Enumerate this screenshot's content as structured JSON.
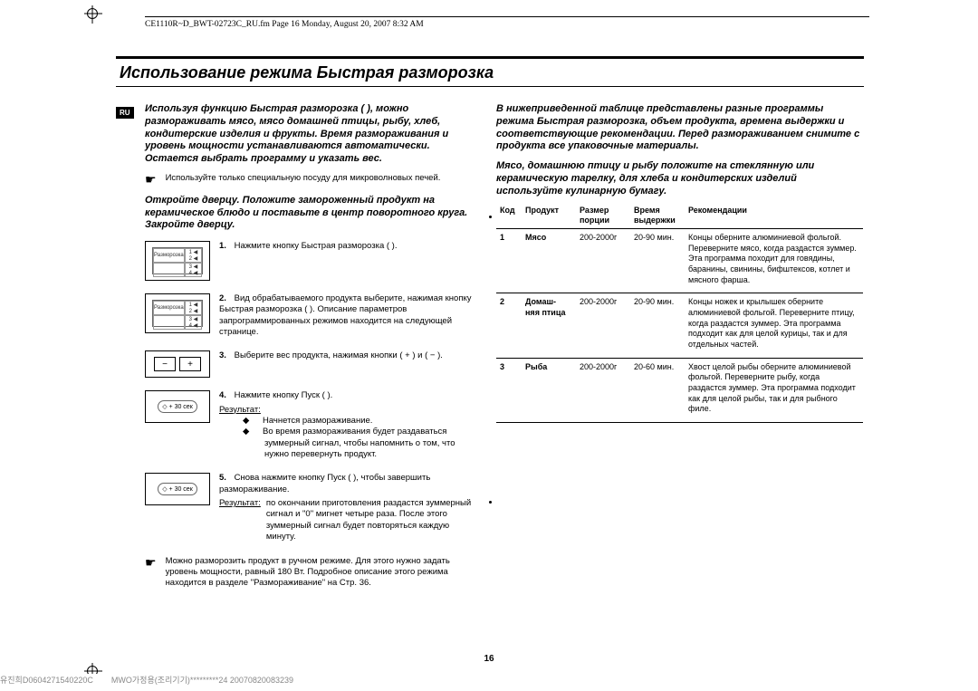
{
  "header": {
    "filename": "CE1110R~D_BWT-02723C_RU.fm  Page 16  Monday, August 20, 2007  8:32 AM"
  },
  "title": "Использование режима Быстрая разморозка",
  "badge": "RU",
  "left": {
    "intro": "Используя функцию Быстрая разморозка ( ), можно размораживать мясо, мясо домашней птицы, рыбу, хлеб, кондитерские изделия и фрукты. Время размораживания и уровень мощности устанавливаются автоматически. Остается выбрать программу и указать вес.",
    "note": "Используйте только специальную посуду для микроволновых печей.",
    "instr": "Откройте дверцу. Положите замороженный продукт на керамическое блюдо и поставьте в центр поворотного круга. Закройте дверцу.",
    "steps": {
      "s1": {
        "num": "1.",
        "text": "Нажмите кнопку Быстрая разморозка ( )."
      },
      "s2": {
        "num": "2.",
        "text": "Вид обрабатываемого продукта выберите, нажимая кнопку Быстрая разморозка ( ). Описание параметров запрограммированных режимов находится на следующей странице."
      },
      "s3": {
        "num": "3.",
        "text": "Выберите вес продукта, нажимая кнопки ( + ) и ( − )."
      },
      "s4": {
        "num": "4.",
        "text_a": "Нажмите кнопку Пуск ( ).",
        "result_label": "Результат:",
        "b1": "Начнется размораживание.",
        "b2": "Во время размораживания будет раздаваться зуммерный сигнал, чтобы напомнить о том, что нужно перевернуть продукт."
      },
      "s5": {
        "num": "5.",
        "text_a": "Снова нажмите кнопку Пуск ( ), чтобы завершить размораживание.",
        "result_label": "Результат:",
        "result_text": "по окончании приготовления раздастся зуммерный сигнал и \"0\" мигнет четыре раза. После этого зуммерный сигнал будет повторяться каждую минуту."
      }
    },
    "manual_note": "Можно разморозить продукт в ручном режиме. Для этого нужно задать уровень мощности, равный 180 Вт. Подробное описание этого режима находится в разделе \"Размораживание\" на Стр. 36."
  },
  "right": {
    "intro": "В нижеприведенной таблице представлены разные программы режима Быстрая разморозка, объем продукта, времена выдержки и соответствующие рекомендации. Перед размораживанием снимите с продукта все упаковочные материалы.",
    "intro2": "Мясо, домашнюю птицу и рыбу положите на стеклянную или керамическую тарелку, для хлеба и кондитерских изделий используйте кулинарную бумагу.",
    "th": {
      "code": "Код",
      "prod": "Продукт",
      "size": "Размер порции",
      "time": "Время выдержки",
      "rec": "Рекомендации"
    },
    "rows": [
      {
        "code": "1",
        "prod": "Мясо",
        "size": "200-2000г",
        "time": "20-90 мин.",
        "rec": "Концы оберните алюминиевой фольгой. Переверните мясо, когда раздастся зуммер. Эта программа походит для говядины, баранины, свинины, бифштексов, котлет и мясного фарша."
      },
      {
        "code": "2",
        "prod": "Домаш-\nняя птица",
        "size": "200-2000г",
        "time": "20-90 мин.",
        "rec": "Концы ножек и крылышек оберните алюминиевой фольгой. Переверните птицу, когда раздастся зуммер. Эта программа подходит как для целой курицы, так и для отдельных частей."
      },
      {
        "code": "3",
        "prod": "Рыба",
        "size": "200-2000г",
        "time": "20-60 мин.",
        "rec": "Хвост целой рыбы оберните алюминиевой фольгой. Переверните рыбу, когда раздастся зуммер. Эта программа подходит как для целой рыбы, так и для рыбного филе."
      }
    ]
  },
  "page_number": "16",
  "footer_code": "유진희D0604271540220C        MWO가정용(조리기기)*********24 20070820083239",
  "panel": {
    "label": "Разморозка",
    "start": "◇ + 30 сек"
  }
}
